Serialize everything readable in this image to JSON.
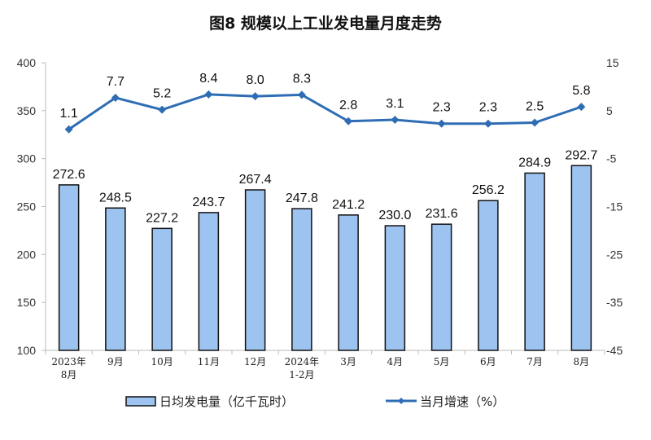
{
  "chart_data": {
    "type": "bar+line",
    "title": "图8  规模以上工业发电量月度走势",
    "categories": [
      "2023年\n8月",
      "9月",
      "10月",
      "11月",
      "12月",
      "2024年\n1-2月",
      "3月",
      "4月",
      "5月",
      "6月",
      "7月",
      "8月"
    ],
    "series": [
      {
        "name": "日均发电量（亿千瓦时）",
        "type": "bar",
        "axis": "left",
        "color": "#9DC3F0",
        "values": [
          272.6,
          248.5,
          227.2,
          243.7,
          267.4,
          247.8,
          241.2,
          230.0,
          231.6,
          256.2,
          284.9,
          292.7
        ]
      },
      {
        "name": "当月增速（%）",
        "type": "line",
        "axis": "right",
        "color": "#2E6DB4",
        "values": [
          1.1,
          7.7,
          5.2,
          8.4,
          8.0,
          8.3,
          2.8,
          3.1,
          2.3,
          2.3,
          2.5,
          5.8
        ]
      }
    ],
    "y_left": {
      "range": [
        100,
        400
      ],
      "ticks": [
        100,
        150,
        200,
        250,
        300,
        350,
        400
      ]
    },
    "y_right": {
      "range": [
        -45,
        15
      ],
      "ticks": [
        -45,
        -35,
        -25,
        -15,
        -5,
        5,
        15
      ]
    },
    "grid": false,
    "legend": "bottom"
  }
}
